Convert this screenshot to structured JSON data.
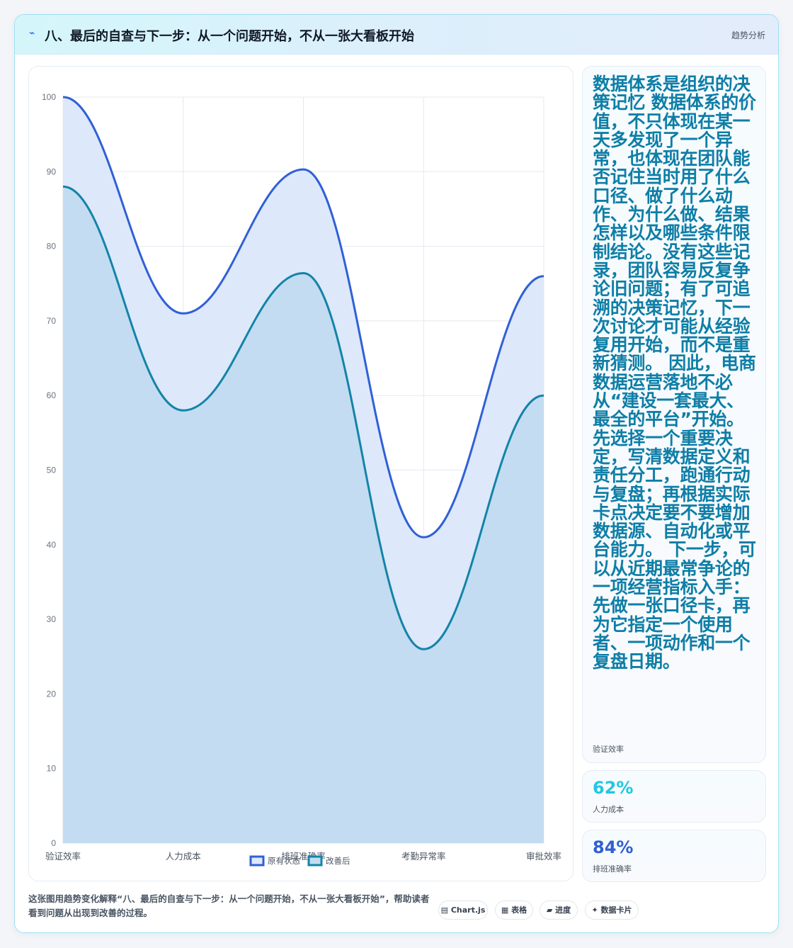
{
  "header": {
    "icon": "lightning-icon",
    "title": "八、最后的自查与下一步：从一个问题开始，不从一张大看板开始",
    "right_label": "趋势分析"
  },
  "chart_data": {
    "type": "area",
    "categories": [
      "验证效率",
      "人力成本",
      "排班准确率",
      "考勤异常率",
      "审批效率"
    ],
    "series": [
      {
        "name": "原有状态",
        "values": [
          100,
          71,
          90.3,
          41,
          76
        ],
        "color": "#3060d6",
        "fill": "#dde8fa"
      },
      {
        "name": "改善后",
        "values": [
          88,
          58,
          76.4,
          26,
          60
        ],
        "color": "#1384a8",
        "fill": "#c3dcf1"
      }
    ],
    "ylim": [
      0,
      100
    ],
    "yticks": [
      0,
      10,
      20,
      30,
      40,
      50,
      60,
      70,
      80,
      90,
      100
    ],
    "grid": true,
    "legend": "bottom",
    "curve": "smooth"
  },
  "side": {
    "text": "数据体系是组织的决策记忆 数据体系的价值，不只体现在某一天多发现了一个异常，也体现在团队能否记住当时用了什么口径、做了什么动作、为什么做、结果怎样以及哪些条件限制结论。没有这些记录，团队容易反复争论旧问题；有了可追溯的决策记忆，下一次讨论才可能从经验复用开始，而不是重新猜测。 因此，电商数据运营落地不必从“建设一套最大、最全的平台”开始。先选择一个重要决定，写清数据定义和责任分工，跑通行动与复盘；再根据实际卡点决定要不要增加数据源、自动化或平台能力。 下一步，可以从近期最常争论的一项经营指标入手：先做一张口径卡，再为它指定一个使用者、一项动作和一个复盘日期。",
    "label": "验证效率"
  },
  "stats": [
    {
      "value": "62%",
      "label": "人力成本",
      "color": "#22c7e0"
    },
    {
      "value": "84%",
      "label": "排班准确率",
      "color": "#2f5fd2"
    }
  ],
  "caption": "这张图用趋势变化解释“八、最后的自查与下一步：从一个问题开始，不从一张大看板开始”，帮助读者看到问题从出现到改善的过程。",
  "tags": [
    {
      "icon": "window-icon",
      "glyph": "▤",
      "label": "Chart.js"
    },
    {
      "icon": "table-icon",
      "glyph": "▦",
      "label": "表格"
    },
    {
      "icon": "progress-icon",
      "glyph": "▰",
      "label": "进度"
    },
    {
      "icon": "sparkle-icon",
      "glyph": "✦",
      "label": "数据卡片"
    }
  ]
}
